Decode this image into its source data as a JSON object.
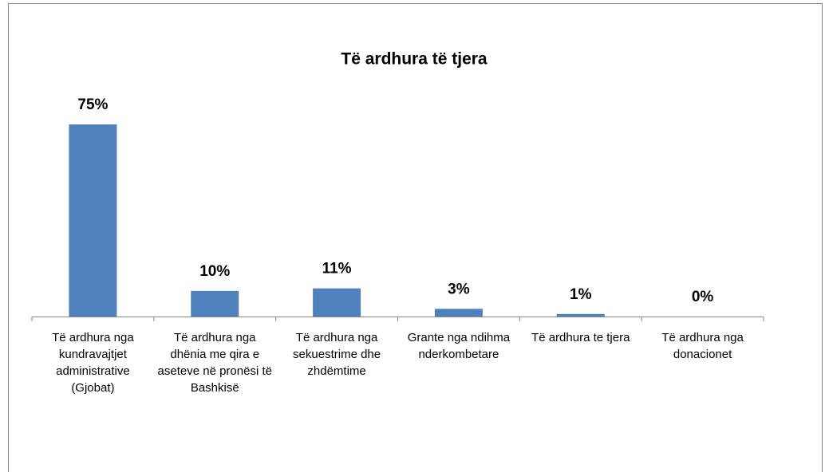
{
  "chart_data": {
    "type": "bar",
    "title": "Të ardhura të tjera",
    "categories": [
      "Të ardhura nga kundravajtjet administrative (Gjobat)",
      "Të ardhura nga dhënia me qira e aseteve në pronësi të Bashkisë",
      "Të ardhura nga sekuestrime dhe zhdëmtime",
      "Grante nga ndihma nderkombetare",
      "Të ardhura te tjera",
      "Të ardhura nga donacionet"
    ],
    "values": [
      75,
      10,
      11,
      3,
      1,
      0
    ],
    "value_labels": [
      "75%",
      "10%",
      "11%",
      "3%",
      "1%",
      "0%"
    ],
    "color": "#4f81bd",
    "ylim": [
      0,
      80
    ]
  }
}
